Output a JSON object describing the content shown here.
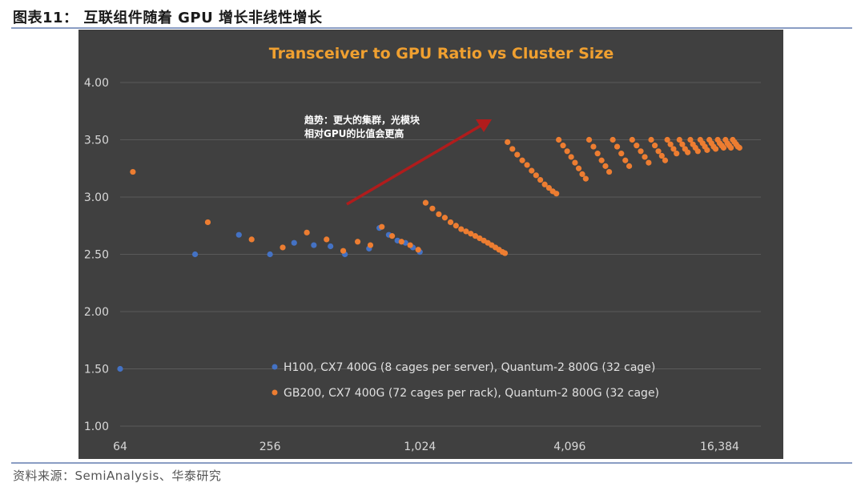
{
  "figure": {
    "label": "图表11：",
    "caption": "互联组件随着 GPU 增长非线性增长",
    "source": "资料来源：SemiAnalysis、华泰研究"
  },
  "colors": {
    "background": "#404040",
    "title": "#f0a030",
    "axis_text": "#d8d8d8",
    "grid": "#5a5a5a",
    "h100": "#4472c4",
    "gb200": "#ed7d31",
    "arrow": "#b01c1c"
  },
  "chart_data": {
    "type": "scatter",
    "title": "Transceiver to GPU Ratio vs Cluster Size",
    "x_scale": "log2",
    "xlim": [
      64,
      24000
    ],
    "ylim": [
      1.0,
      4.0
    ],
    "y_ticks": [
      1.0,
      1.5,
      2.0,
      2.5,
      3.0,
      3.5,
      4.0
    ],
    "y_tick_labels": [
      "1.00",
      "1.50",
      "2.00",
      "2.50",
      "3.00",
      "3.50",
      "4.00"
    ],
    "x_ticks": [
      64,
      256,
      1024,
      4096,
      16384
    ],
    "x_tick_labels": [
      "64",
      "256",
      "1,024",
      "4,096",
      "16,384"
    ],
    "grid": "horizontal",
    "annotation": {
      "lines": [
        "趋势：更大的集群，光模块",
        "相对GPU的比值会更高"
      ]
    },
    "legend": {
      "placement": "bottom-center",
      "entries": [
        "H100, CX7 400G (8 cages per server), Quantum-2 800G (32 cage)",
        "GB200, CX7 400G (72 cages per rack), Quantum-2 800G (32 cage)"
      ]
    },
    "series": [
      {
        "name": "H100, CX7 400G (8 cages per server), Quantum-2 800G (32 cage)",
        "points": [
          [
            64,
            1.5
          ],
          [
            128,
            2.5
          ],
          [
            192,
            2.67
          ],
          [
            256,
            2.5
          ],
          [
            320,
            2.6
          ],
          [
            384,
            2.58
          ],
          [
            448,
            2.57
          ],
          [
            512,
            2.5
          ],
          [
            640,
            2.55
          ],
          [
            704,
            2.73
          ],
          [
            768,
            2.67
          ],
          [
            832,
            2.62
          ],
          [
            896,
            2.6
          ],
          [
            960,
            2.56
          ],
          [
            1024,
            2.52
          ]
        ]
      },
      {
        "name": "GB200, CX7 400G (72 cages per rack), Quantum-2 800G (32 cage)",
        "points": [
          [
            72,
            3.22
          ],
          [
            144,
            2.78
          ],
          [
            216,
            2.63
          ],
          [
            288,
            2.56
          ],
          [
            360,
            2.69
          ],
          [
            432,
            2.63
          ],
          [
            504,
            2.53
          ],
          [
            576,
            2.61
          ],
          [
            648,
            2.58
          ],
          [
            720,
            2.74
          ],
          [
            792,
            2.66
          ],
          [
            864,
            2.61
          ],
          [
            936,
            2.58
          ],
          [
            1008,
            2.54
          ],
          [
            1080,
            2.95
          ],
          [
            1150,
            2.9
          ],
          [
            1220,
            2.85
          ],
          [
            1290,
            2.82
          ],
          [
            1360,
            2.78
          ],
          [
            1430,
            2.75
          ],
          [
            1500,
            2.72
          ],
          [
            1570,
            2.7
          ],
          [
            1640,
            2.68
          ],
          [
            1710,
            2.66
          ],
          [
            1780,
            2.64
          ],
          [
            1850,
            2.62
          ],
          [
            1920,
            2.6
          ],
          [
            1990,
            2.58
          ],
          [
            2060,
            2.56
          ],
          [
            2130,
            2.54
          ],
          [
            2200,
            2.52
          ],
          [
            2250,
            2.51
          ],
          [
            2304,
            3.48
          ],
          [
            2410,
            3.42
          ],
          [
            2520,
            3.37
          ],
          [
            2640,
            3.32
          ],
          [
            2760,
            3.28
          ],
          [
            2880,
            3.23
          ],
          [
            3000,
            3.19
          ],
          [
            3120,
            3.15
          ],
          [
            3250,
            3.11
          ],
          [
            3380,
            3.08
          ],
          [
            3500,
            3.05
          ],
          [
            3620,
            3.03
          ],
          [
            3700,
            3.5
          ],
          [
            3850,
            3.45
          ],
          [
            4000,
            3.4
          ],
          [
            4150,
            3.35
          ],
          [
            4300,
            3.3
          ],
          [
            4450,
            3.25
          ],
          [
            4600,
            3.2
          ],
          [
            4750,
            3.16
          ],
          [
            4900,
            3.5
          ],
          [
            5100,
            3.44
          ],
          [
            5300,
            3.38
          ],
          [
            5500,
            3.32
          ],
          [
            5700,
            3.27
          ],
          [
            5900,
            3.22
          ],
          [
            6100,
            3.5
          ],
          [
            6350,
            3.44
          ],
          [
            6600,
            3.38
          ],
          [
            6850,
            3.32
          ],
          [
            7100,
            3.27
          ],
          [
            7300,
            3.5
          ],
          [
            7600,
            3.45
          ],
          [
            7900,
            3.4
          ],
          [
            8200,
            3.35
          ],
          [
            8500,
            3.3
          ],
          [
            8700,
            3.5
          ],
          [
            9000,
            3.45
          ],
          [
            9300,
            3.4
          ],
          [
            9600,
            3.36
          ],
          [
            9900,
            3.32
          ],
          [
            10100,
            3.5
          ],
          [
            10400,
            3.46
          ],
          [
            10700,
            3.42
          ],
          [
            11000,
            3.38
          ],
          [
            11300,
            3.5
          ],
          [
            11600,
            3.46
          ],
          [
            11900,
            3.42
          ],
          [
            12200,
            3.39
          ],
          [
            12500,
            3.5
          ],
          [
            12800,
            3.46
          ],
          [
            13100,
            3.43
          ],
          [
            13400,
            3.4
          ],
          [
            13700,
            3.5
          ],
          [
            14000,
            3.47
          ],
          [
            14300,
            3.44
          ],
          [
            14600,
            3.41
          ],
          [
            14900,
            3.5
          ],
          [
            15200,
            3.47
          ],
          [
            15500,
            3.44
          ],
          [
            15800,
            3.42
          ],
          [
            16100,
            3.5
          ],
          [
            16400,
            3.47
          ],
          [
            16700,
            3.45
          ],
          [
            17000,
            3.43
          ],
          [
            17300,
            3.5
          ],
          [
            17600,
            3.47
          ],
          [
            17900,
            3.45
          ],
          [
            18200,
            3.43
          ],
          [
            18500,
            3.5
          ],
          [
            18800,
            3.48
          ],
          [
            19100,
            3.46
          ],
          [
            19400,
            3.44
          ],
          [
            19700,
            3.43
          ]
        ]
      }
    ]
  }
}
